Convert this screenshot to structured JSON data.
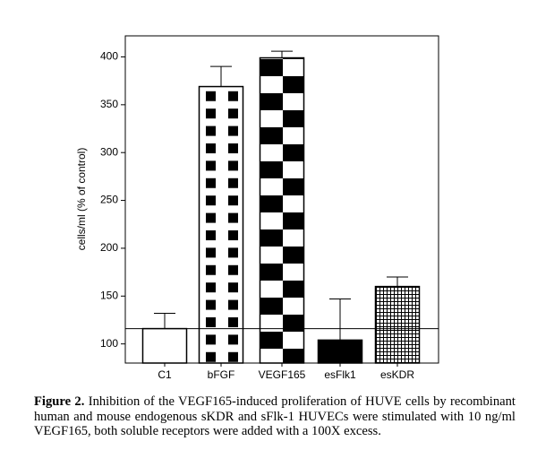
{
  "chart_data": {
    "type": "bar",
    "ylabel": "cells/ml (% of control)",
    "categories": [
      "C1",
      "bFGF",
      "VEGF165",
      "esFlk1",
      "esKDR"
    ],
    "values": [
      116,
      369,
      399,
      104,
      160
    ],
    "errors": [
      16,
      21,
      7,
      43,
      10
    ],
    "patterns": [
      "none",
      "squares",
      "checker",
      "solid",
      "grid"
    ],
    "color": "#000000",
    "reference_line": 116,
    "ylim": [
      80,
      422
    ],
    "yticks": [
      100,
      150,
      200,
      250,
      300,
      350,
      400
    ]
  },
  "caption": {
    "label": "Figure 2.",
    "text": "Inhibition of the VEGF165-induced proliferation of HUVE cells by recombinant human and mouse endogenous sKDR and sFlk-1 HUVECs were stimulated with 10 ng/ml VEGF165, both soluble receptors were added with a 100X excess."
  }
}
